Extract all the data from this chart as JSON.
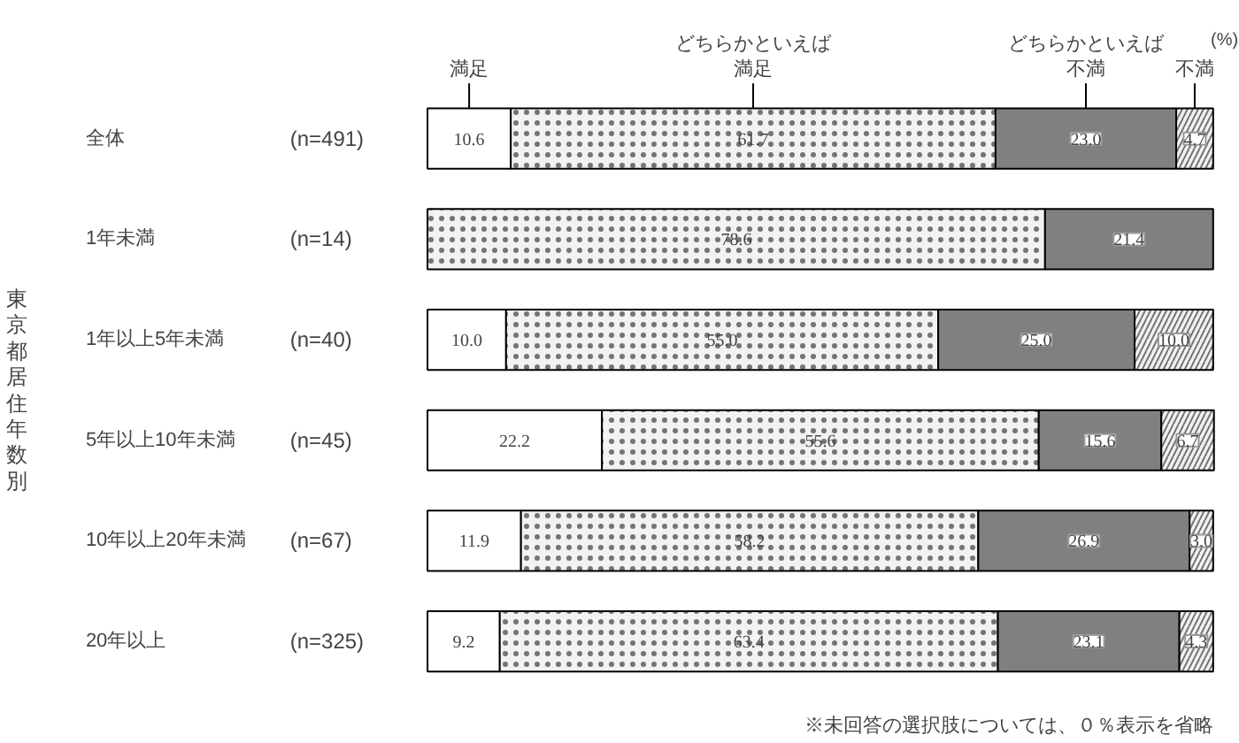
{
  "chart_data": {
    "type": "bar",
    "orientation": "horizontal",
    "stacked": true,
    "tick_labels": false,
    "grid": false,
    "xlim": [
      0,
      100
    ],
    "categories": [
      "全体 (n=491)",
      "1年未満 (n=14)",
      "1年以上5年未満 (n=40)",
      "5年以上10年未満 (n=45)",
      "10年以上20年未満 (n=67)",
      "20年以上 (n=325)"
    ],
    "series": [
      {
        "name": "満足",
        "color": "#ffffff",
        "values": [
          10.6,
          null,
          10.0,
          22.2,
          11.9,
          9.2
        ],
        "value_labels": [
          "10.6",
          null,
          "10.0",
          "22.2",
          "11.9",
          "9.2"
        ]
      },
      {
        "name": "どちらかといえば満足",
        "color": "#f2f2f2",
        "values": [
          61.7,
          78.6,
          55.0,
          55.6,
          58.2,
          63.4
        ],
        "value_labels": [
          "61.7",
          "78.6",
          "55.0",
          "55.6",
          "58.2",
          "63.4"
        ]
      },
      {
        "name": "どちらかといえば不満",
        "color": "#808080",
        "values": [
          23.0,
          21.4,
          25.0,
          15.6,
          26.9,
          23.1
        ],
        "value_labels": [
          "23.0",
          "21.4",
          "25.0",
          "15.6",
          "26.9",
          "23.1"
        ]
      },
      {
        "name": "不満",
        "color": "#f2f2f2",
        "values": [
          4.7,
          null,
          10.0,
          6.7,
          3.0,
          4.3
        ],
        "value_labels": [
          "4.7",
          null,
          "10.0",
          "6.7",
          "3.0",
          "4.3"
        ]
      }
    ],
    "annotations": [
      "東京都居住年数別",
      "(%)",
      "※未回答の選択肢については、０％表示を省略"
    ]
  }
}
